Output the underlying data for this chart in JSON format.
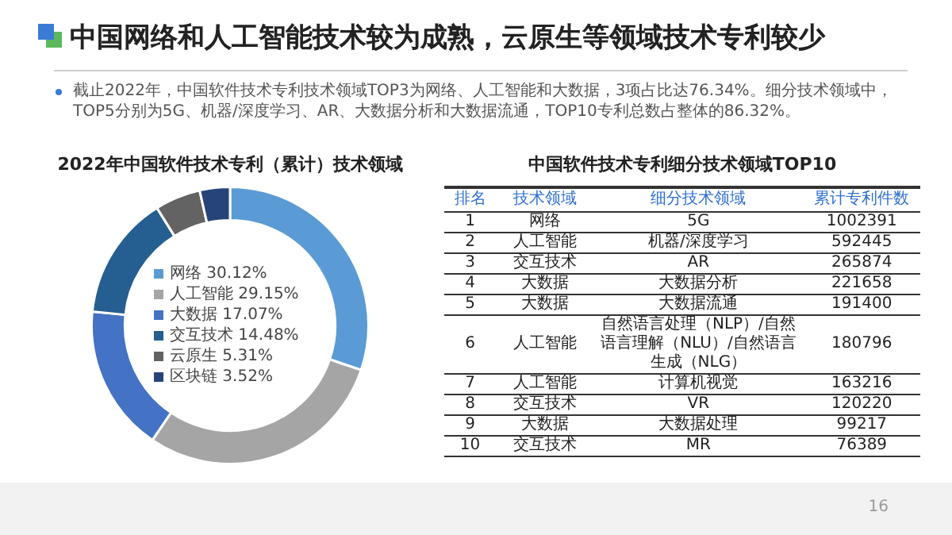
{
  "chart_data": [
    {
      "type": "other",
      "title": "中国网络和人工智能技术较为成熟，云原生等领域技术专利较少",
      "annotations": [
        "截止2022年，中国软件技术专利技术领域TOP3为网络、人工智能和大数据，3项占比达76.34%。细分技术领域中， TOP5分别为5G、机器/深度学习、AR、大数据分析和大数据流通，TOP10专利总数占整体的86.32%。",
        "16"
      ]
    },
    {
      "type": "donut",
      "title": "2022年中国软件技术专利（累计）技术领域",
      "categories": [
        "网络",
        "人工智能",
        "大数据",
        "交互技术",
        "云原生",
        "区块链"
      ],
      "values": [
        30.12,
        29.15,
        17.07,
        14.48,
        5.31,
        3.52
      ],
      "value_labels": [
        "30.12%",
        "29.15%",
        "17.07%",
        "14.48%",
        "5.31%",
        "3.52%"
      ],
      "colors": [
        "#5b9bd5",
        "#a5a5a5",
        "#4472c4",
        "#255e91",
        "#636363",
        "#264478"
      ],
      "legend": "center"
    },
    {
      "type": "other",
      "title": "中国软件技术专利细分技术领域TOP10",
      "categories": [
        "排名",
        "技术领域",
        "细分技术领域",
        "累计专利件数"
      ],
      "cell_labels": [
        [
          "1",
          "网络",
          "5G",
          "1002391"
        ],
        [
          "2",
          "人工智能",
          "机器/深度学习",
          "592445"
        ],
        [
          "3",
          "交互技术",
          "AR",
          "265874"
        ],
        [
          "4",
          "大数据",
          "大数据分析",
          "221658"
        ],
        [
          "5",
          "大数据",
          "大数据流通",
          "191400"
        ],
        [
          "6",
          "人工智能",
          "自然语言处理（NLP）/自然语言理解（NLU）/自然语言生成（NLG）",
          "180796"
        ],
        [
          "7",
          "人工智能",
          "计算机视觉",
          "163216"
        ],
        [
          "8",
          "交互技术",
          "VR",
          "120220"
        ],
        [
          "9",
          "大数据",
          "大数据处理",
          "99217"
        ],
        [
          "10",
          "交互技术",
          "MR",
          "76389"
        ]
      ]
    }
  ]
}
